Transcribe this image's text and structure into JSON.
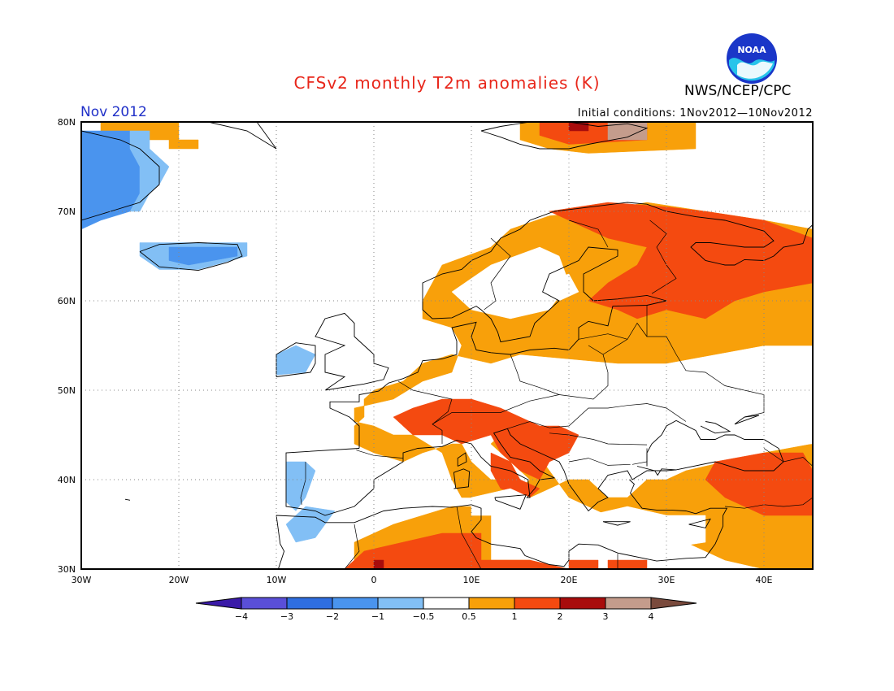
{
  "header": {
    "title": "CFSv2 monthly T2m anomalies (K)",
    "agency": "NWS/NCEP/CPC",
    "period": "Nov 2012",
    "initial_conditions": "Initial conditions: 1Nov2012—10Nov2012",
    "logo_text": "NOAA"
  },
  "map": {
    "projection": "cylindrical",
    "lon_range": [
      -30,
      45
    ],
    "lat_range": [
      30,
      80
    ],
    "lat_ticks": [
      {
        "value": 80,
        "label": "80N"
      },
      {
        "value": 70,
        "label": "70N"
      },
      {
        "value": 60,
        "label": "60N"
      },
      {
        "value": 50,
        "label": "50N"
      },
      {
        "value": 40,
        "label": "40N"
      },
      {
        "value": 30,
        "label": "30N"
      }
    ],
    "lon_ticks": [
      {
        "value": -30,
        "label": "30W"
      },
      {
        "value": -20,
        "label": "20W"
      },
      {
        "value": -10,
        "label": "10W"
      },
      {
        "value": 0,
        "label": "0"
      },
      {
        "value": 10,
        "label": "10E"
      },
      {
        "value": 20,
        "label": "20E"
      },
      {
        "value": 30,
        "label": "30E"
      },
      {
        "value": 40,
        "label": "40E"
      }
    ],
    "gridlines": true
  },
  "colorbar": {
    "levels": [
      -4,
      -3,
      -2,
      -1,
      -0.5,
      0.5,
      1,
      2,
      3,
      4
    ],
    "labels": [
      "−4",
      "−3",
      "−2",
      "−1",
      "−0.5",
      "0.5",
      "1",
      "2",
      "3",
      "4"
    ],
    "colors": [
      "#3a1aa8",
      "#5a4fd8",
      "#2f6ee0",
      "#4a94ee",
      "#82bff5",
      "#ffffff",
      "#f8a00a",
      "#f44a10",
      "#a80c0c",
      "#c49c8c",
      "#7a4a3c"
    ]
  }
}
